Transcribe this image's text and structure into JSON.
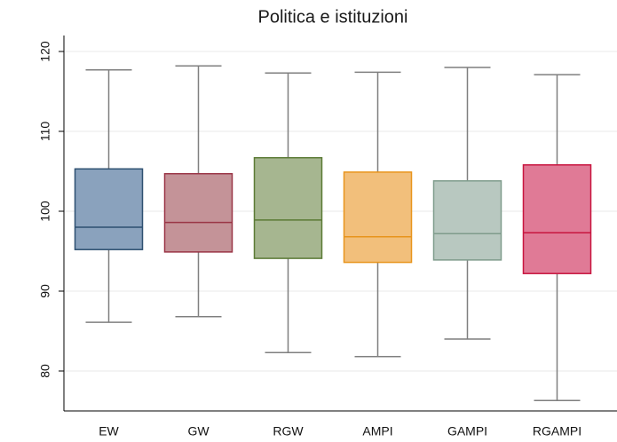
{
  "chart_data": {
    "type": "box",
    "title": "Politica e istituzioni",
    "categories": [
      "EW",
      "GW",
      "RGW",
      "AMPI",
      "GAMPI",
      "RGAMPI"
    ],
    "boxes": [
      {
        "min": 86.1,
        "q1": 95.2,
        "median": 98.0,
        "q3": 105.3,
        "max": 117.7,
        "color": "#8aa2bd",
        "edge": "#2d4f70"
      },
      {
        "min": 86.8,
        "q1": 94.9,
        "median": 98.6,
        "q3": 104.7,
        "max": 118.2,
        "color": "#c49398",
        "edge": "#9a3546"
      },
      {
        "min": 82.3,
        "q1": 94.1,
        "median": 98.9,
        "q3": 106.7,
        "max": 117.3,
        "color": "#a6b690",
        "edge": "#5b7a35"
      },
      {
        "min": 81.8,
        "q1": 93.6,
        "median": 96.8,
        "q3": 104.9,
        "max": 117.4,
        "color": "#f2bf7b",
        "edge": "#e8941c"
      },
      {
        "min": 84.0,
        "q1": 93.9,
        "median": 97.2,
        "q3": 103.8,
        "max": 118.0,
        "color": "#b8c8c0",
        "edge": "#7f9c8c"
      },
      {
        "min": 76.3,
        "q1": 92.2,
        "median": 97.3,
        "q3": 105.8,
        "max": 117.1,
        "color": "#e07a96",
        "edge": "#c8153f"
      }
    ],
    "whisker_color": "#7f7f7f",
    "ylim": [
      75,
      122
    ],
    "yticks": [
      80,
      90,
      100,
      110,
      120
    ],
    "grid": true
  }
}
